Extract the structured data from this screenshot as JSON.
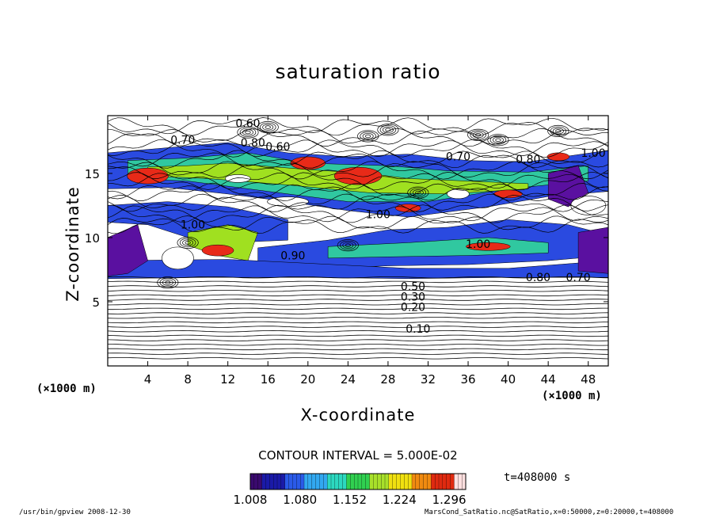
{
  "chart_data": {
    "type": "heatmap",
    "title": "saturation ratio",
    "xlabel": "X-coordinate",
    "ylabel": "Z-coordinate",
    "x_unit_label": "(×1000 m)",
    "x_unit_label_right": "(×1000 m)",
    "xlim": [
      0,
      50
    ],
    "ylim": [
      0,
      19.5
    ],
    "x_ticks": [
      4,
      8,
      12,
      16,
      20,
      24,
      28,
      32,
      36,
      40,
      44,
      48
    ],
    "x_tick_labels": [
      "4",
      "8",
      "12",
      "16",
      "20",
      "24",
      "28",
      "32",
      "36",
      "40",
      "44",
      "48"
    ],
    "y_ticks": [
      5,
      10,
      15
    ],
    "y_tick_labels": [
      "5",
      "10",
      "15"
    ],
    "contour_interval_text": "CONTOUR INTERVAL = 5.000E-02",
    "contour_labels": [
      {
        "x": 31,
        "y": 2.6,
        "text": "0.10"
      },
      {
        "x": 30.5,
        "y": 4.3,
        "text": "0.20"
      },
      {
        "x": 30.5,
        "y": 5.1,
        "text": "0.30"
      },
      {
        "x": 30.5,
        "y": 5.9,
        "text": "0.50"
      },
      {
        "x": 18.5,
        "y": 8.3,
        "text": "0.90"
      },
      {
        "x": 27,
        "y": 11.5,
        "text": "1.00"
      },
      {
        "x": 37,
        "y": 9.2,
        "text": "1.00"
      },
      {
        "x": 48.5,
        "y": 16.3,
        "text": "1.00"
      },
      {
        "x": 8.5,
        "y": 10.7,
        "text": "1.00"
      },
      {
        "x": 14,
        "y": 18.6,
        "text": "0.60"
      },
      {
        "x": 7.5,
        "y": 17.3,
        "text": "0.70"
      },
      {
        "x": 14.5,
        "y": 17.1,
        "text": "0.80"
      },
      {
        "x": 17,
        "y": 16.8,
        "text": "0.60"
      },
      {
        "x": 35,
        "y": 16.0,
        "text": "0.70"
      },
      {
        "x": 42,
        "y": 15.8,
        "text": "0.80"
      },
      {
        "x": 43,
        "y": 6.6,
        "text": "0.80"
      },
      {
        "x": 47,
        "y": 6.6,
        "text": "0.70"
      }
    ],
    "colorbar": {
      "min": 1.008,
      "max": 1.32,
      "ticks": [
        1.008,
        1.08,
        1.152,
        1.224,
        1.296
      ],
      "tick_labels": [
        "1.008",
        "1.080",
        "1.152",
        "1.224",
        "1.296"
      ],
      "colors": [
        "#3a0a6e",
        "#1a1aa8",
        "#2a5ae8",
        "#32a8f0",
        "#2cd8c0",
        "#30d050",
        "#a8e02a",
        "#f0e010",
        "#f08a10",
        "#e02a10",
        "#ffe0e0"
      ]
    },
    "supersaturated_regions_description_colors": {
      "low": "#5a10a0",
      "mid": "#2a4ae0",
      "mid2": "#30c8a0",
      "high": "#a0e020",
      "peak": "#e82a18"
    },
    "time_label": "t=408000 s"
  },
  "footer": {
    "left": "/usr/bin/gpview   2008-12-30",
    "right": "MarsCond_SatRatio.nc@SatRatio,x=0:50000,z=0:20000,t=408000"
  }
}
